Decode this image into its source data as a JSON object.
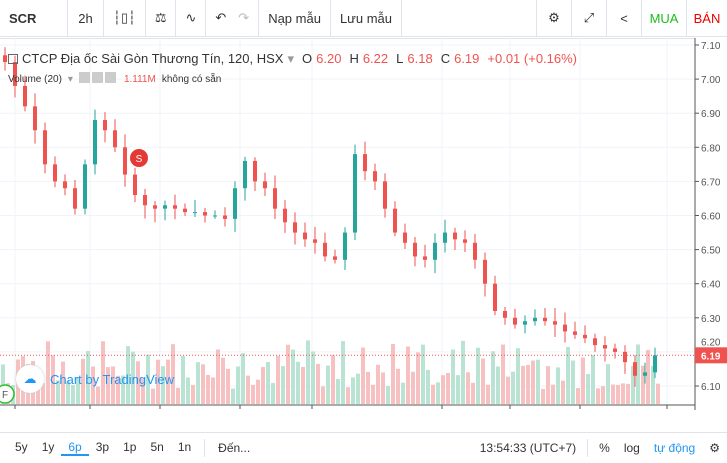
{
  "toolbar": {
    "symbol": "SCR",
    "interval": "2h",
    "load_template": "Nạp mẫu",
    "save_template": "Lưu mẫu",
    "buy": "MUA",
    "sell": "BÁN"
  },
  "legend": {
    "title": "CTCP Địa ốc Sài Gòn Thương Tín, 120, HSX",
    "o_label": "O",
    "o": "6.20",
    "h_label": "H",
    "h": "6.22",
    "l_label": "L",
    "l": "6.18",
    "c_label": "C",
    "c": "6.19",
    "change": "+0.01 (+0.16%)"
  },
  "volume": {
    "label": "Volume (20)",
    "value": "1.111M",
    "na": "không có sẵn"
  },
  "marker": "S",
  "f_marker": "F",
  "watermark": "Chart by TradingView",
  "price_axis": {
    "ticks": [
      "7.10",
      "7.00",
      "6.90",
      "6.80",
      "6.70",
      "6.60",
      "6.50",
      "6.40",
      "6.30",
      "6.20",
      "6.10"
    ],
    "current": "6.19"
  },
  "time_axis": [
    "háng Tám",
    "12",
    "21",
    "Tháng 9",
    "12",
    "Tháng 10",
    "10",
    "21",
    "Tháng 11"
  ],
  "bottom": {
    "ranges": [
      "5y",
      "1y",
      "6p",
      "3p",
      "1p",
      "5n",
      "1n"
    ],
    "active": "6p",
    "goto": "Đến...",
    "clock": "13:54:33 (UTC+7)",
    "percent": "%",
    "log": "log",
    "auto": "tự động"
  },
  "colors": {
    "up": "#26a69a",
    "down": "#ef5350",
    "vol_up": "#b9e3d2",
    "vol_down": "#f7c1c1",
    "accent": "#2196f3"
  },
  "chart_data": {
    "type": "candlestick",
    "ylim": [
      6.05,
      7.12
    ],
    "close": [
      7.05,
      6.98,
      6.92,
      6.85,
      6.75,
      6.7,
      6.68,
      6.62,
      6.75,
      6.88,
      6.85,
      6.8,
      6.72,
      6.66,
      6.63,
      6.62,
      6.63,
      6.62,
      6.61,
      6.61,
      6.6,
      6.6,
      6.59,
      6.68,
      6.76,
      6.7,
      6.68,
      6.62,
      6.58,
      6.55,
      6.53,
      6.52,
      6.48,
      6.47,
      6.55,
      6.78,
      6.73,
      6.7,
      6.62,
      6.55,
      6.52,
      6.48,
      6.47,
      6.52,
      6.55,
      6.53,
      6.52,
      6.47,
      6.4,
      6.32,
      6.3,
      6.28,
      6.29,
      6.3,
      6.29,
      6.28,
      6.26,
      6.25,
      6.24,
      6.22,
      6.21,
      6.2,
      6.17,
      6.13,
      6.14,
      6.19
    ]
  }
}
